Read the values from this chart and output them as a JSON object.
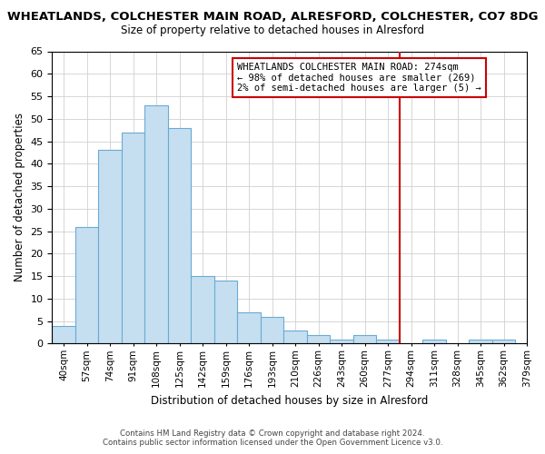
{
  "title": "WHEATLANDS, COLCHESTER MAIN ROAD, ALRESFORD, COLCHESTER, CO7 8DG",
  "subtitle": "Size of property relative to detached houses in Alresford",
  "xlabel": "Distribution of detached houses by size in Alresford",
  "ylabel": "Number of detached properties",
  "bar_color": "#c5dff0",
  "bar_edge_color": "#6aaad4",
  "background_color": "#ffffff",
  "grid_color": "#d0d0d0",
  "bin_labels": [
    "40sqm",
    "57sqm",
    "74sqm",
    "91sqm",
    "108sqm",
    "125sqm",
    "142sqm",
    "159sqm",
    "176sqm",
    "193sqm",
    "210sqm",
    "226sqm",
    "243sqm",
    "260sqm",
    "277sqm",
    "294sqm",
    "311sqm",
    "328sqm",
    "345sqm",
    "362sqm",
    "379sqm"
  ],
  "counts": [
    4,
    26,
    43,
    47,
    53,
    48,
    15,
    14,
    7,
    6,
    3,
    2,
    1,
    2,
    1,
    0,
    1,
    0,
    1,
    1
  ],
  "n_bins": 20,
  "ylim": [
    0,
    65
  ],
  "yticks": [
    0,
    5,
    10,
    15,
    20,
    25,
    30,
    35,
    40,
    45,
    50,
    55,
    60,
    65
  ],
  "vline_pos": 14.5,
  "vline_color": "#cc0000",
  "annotation_text": "WHEATLANDS COLCHESTER MAIN ROAD: 274sqm\n← 98% of detached houses are smaller (269)\n2% of semi-detached houses are larger (5) →",
  "annotation_box_color": "#ffffff",
  "annotation_box_edge": "#cc0000",
  "footer_line1": "Contains HM Land Registry data © Crown copyright and database right 2024.",
  "footer_line2": "Contains public sector information licensed under the Open Government Licence v3.0."
}
